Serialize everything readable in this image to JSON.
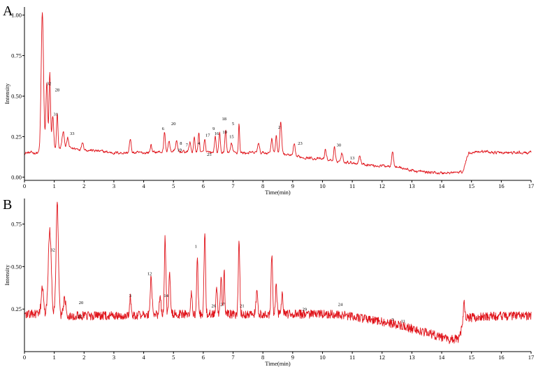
{
  "chart_data": [
    {
      "type": "line",
      "panel": "A",
      "xlabel": "Time(min)",
      "ylabel": "Intensity",
      "xlim": [
        0,
        17
      ],
      "ylim": [
        -0.02,
        1.05
      ],
      "xticks": [
        "0",
        "1",
        "2",
        "3",
        "4",
        "5",
        "6",
        "7",
        "8",
        "9",
        "10",
        "11",
        "12",
        "13",
        "14",
        "15",
        "16",
        "17"
      ],
      "yticks": [
        {
          "value": 0.0,
          "label": "0.00"
        },
        {
          "value": 0.25,
          "label": "0.25"
        },
        {
          "value": 0.5,
          "label": "0.50"
        },
        {
          "value": 0.75,
          "label": "0.75"
        },
        {
          "value": 1.0,
          "label": "1.00"
        }
      ],
      "color": "#e0141b",
      "baseline": [
        [
          0,
          0.15
        ],
        [
          0.55,
          0.15
        ],
        [
          0.58,
          0.16
        ],
        [
          1.5,
          0.18
        ],
        [
          2.0,
          0.17
        ],
        [
          3.0,
          0.15
        ],
        [
          4.0,
          0.15
        ],
        [
          5.0,
          0.16
        ],
        [
          6.0,
          0.15
        ],
        [
          7.5,
          0.15
        ],
        [
          8.5,
          0.15
        ],
        [
          9.0,
          0.13
        ],
        [
          10.0,
          0.11
        ],
        [
          11.0,
          0.09
        ],
        [
          11.8,
          0.07
        ],
        [
          12.2,
          0.07
        ],
        [
          12.6,
          0.06
        ],
        [
          13.0,
          0.04
        ],
        [
          13.5,
          0.03
        ],
        [
          14.0,
          0.025
        ],
        [
          14.7,
          0.03
        ],
        [
          14.9,
          0.15
        ],
        [
          15.2,
          0.16
        ],
        [
          16.0,
          0.15
        ],
        [
          17.0,
          0.15
        ]
      ],
      "noise": 0.007,
      "peaks": [
        [
          0.6,
          0.85,
          0.04
        ],
        [
          0.75,
          0.42,
          0.03
        ],
        [
          0.85,
          0.48,
          0.025
        ],
        [
          0.95,
          0.2,
          0.03
        ],
        [
          1.1,
          0.22,
          0.025
        ],
        [
          1.3,
          0.1,
          0.04
        ],
        [
          1.45,
          0.06,
          0.03
        ],
        [
          1.95,
          0.05,
          0.03
        ],
        [
          3.55,
          0.08,
          0.03
        ],
        [
          4.25,
          0.05,
          0.025
        ],
        [
          4.7,
          0.12,
          0.025
        ],
        [
          4.85,
          0.06,
          0.03
        ],
        [
          5.1,
          0.06,
          0.03
        ],
        [
          5.55,
          0.06,
          0.03
        ],
        [
          5.7,
          0.09,
          0.025
        ],
        [
          5.85,
          0.12,
          0.025
        ],
        [
          6.05,
          0.08,
          0.025
        ],
        [
          6.4,
          0.1,
          0.025
        ],
        [
          6.55,
          0.12,
          0.025
        ],
        [
          6.75,
          0.14,
          0.025
        ],
        [
          6.95,
          0.06,
          0.03
        ],
        [
          7.2,
          0.18,
          0.02
        ],
        [
          7.85,
          0.06,
          0.03
        ],
        [
          8.3,
          0.09,
          0.03
        ],
        [
          8.45,
          0.1,
          0.025
        ],
        [
          8.6,
          0.2,
          0.03
        ],
        [
          9.05,
          0.07,
          0.03
        ],
        [
          10.1,
          0.06,
          0.03
        ],
        [
          10.4,
          0.08,
          0.025
        ],
        [
          10.65,
          0.05,
          0.03
        ],
        [
          11.25,
          0.05,
          0.03
        ],
        [
          12.35,
          0.1,
          0.03
        ]
      ],
      "annotations": [
        {
          "label": "32",
          "x": 0.82,
          "y": 0.57
        },
        {
          "label": "28",
          "x": 1.1,
          "y": 0.53
        },
        {
          "label": "31",
          "x": 1.05,
          "y": 0.38
        },
        {
          "label": "33",
          "x": 1.6,
          "y": 0.26
        },
        {
          "label": "6",
          "x": 4.65,
          "y": 0.29
        },
        {
          "label": "20",
          "x": 5.0,
          "y": 0.32
        },
        {
          "label": "8",
          "x": 5.25,
          "y": 0.2
        },
        {
          "label": "19",
          "x": 5.2,
          "y": 0.16
        },
        {
          "label": "7",
          "x": 5.45,
          "y": 0.19
        },
        {
          "label": "4",
          "x": 5.85,
          "y": 0.2
        },
        {
          "label": "17",
          "x": 6.15,
          "y": 0.25
        },
        {
          "label": "9",
          "x": 6.35,
          "y": 0.29
        },
        {
          "label": "16",
          "x": 6.45,
          "y": 0.26
        },
        {
          "label": "18",
          "x": 6.7,
          "y": 0.35
        },
        {
          "label": "5",
          "x": 7.0,
          "y": 0.32
        },
        {
          "label": "10",
          "x": 6.72,
          "y": 0.27
        },
        {
          "label": "15",
          "x": 6.95,
          "y": 0.24
        },
        {
          "label": "25",
          "x": 6.2,
          "y": 0.13
        },
        {
          "label": "2",
          "x": 8.55,
          "y": 0.3
        },
        {
          "label": "23",
          "x": 9.25,
          "y": 0.2
        },
        {
          "label": "30",
          "x": 10.55,
          "y": 0.19
        },
        {
          "label": "13",
          "x": 11.0,
          "y": 0.11
        }
      ]
    },
    {
      "type": "line",
      "panel": "B",
      "xlabel": "Time(min)",
      "ylabel": "Intensity",
      "xlim": [
        0,
        17
      ],
      "ylim": [
        0.0,
        0.9
      ],
      "xticks": [
        "0",
        "1",
        "2",
        "3",
        "4",
        "5",
        "6",
        "7",
        "8",
        "9",
        "10",
        "11",
        "12",
        "13",
        "14",
        "15",
        "16",
        "17"
      ],
      "yticks": [
        {
          "value": 0.25,
          "label": "0.25"
        },
        {
          "value": 0.5,
          "label": "0.50"
        },
        {
          "value": 0.75,
          "label": "0.75"
        }
      ],
      "color": "#e0141b",
      "baseline": [
        [
          0,
          0.22
        ],
        [
          0.4,
          0.22
        ],
        [
          1.5,
          0.21
        ],
        [
          3.0,
          0.21
        ],
        [
          5.0,
          0.22
        ],
        [
          7.0,
          0.22
        ],
        [
          9.0,
          0.22
        ],
        [
          10.5,
          0.22
        ],
        [
          11.5,
          0.19
        ],
        [
          12.5,
          0.16
        ],
        [
          13.5,
          0.11
        ],
        [
          14.3,
          0.07
        ],
        [
          14.6,
          0.08
        ],
        [
          14.75,
          0.2
        ],
        [
          15.0,
          0.2
        ],
        [
          16.0,
          0.21
        ],
        [
          17.0,
          0.21
        ]
      ],
      "noise": 0.026,
      "peaks": [
        [
          0.6,
          0.15,
          0.04
        ],
        [
          0.85,
          0.5,
          0.05
        ],
        [
          1.1,
          0.65,
          0.04
        ],
        [
          1.35,
          0.1,
          0.04
        ],
        [
          3.55,
          0.11,
          0.025
        ],
        [
          4.25,
          0.22,
          0.03
        ],
        [
          4.55,
          0.12,
          0.025
        ],
        [
          4.72,
          0.45,
          0.025
        ],
        [
          4.87,
          0.25,
          0.025
        ],
        [
          5.6,
          0.12,
          0.025
        ],
        [
          5.8,
          0.32,
          0.025
        ],
        [
          6.05,
          0.48,
          0.025
        ],
        [
          6.45,
          0.15,
          0.025
        ],
        [
          6.6,
          0.22,
          0.025
        ],
        [
          6.7,
          0.28,
          0.02
        ],
        [
          7.2,
          0.42,
          0.025
        ],
        [
          7.8,
          0.12,
          0.03
        ],
        [
          8.3,
          0.36,
          0.025
        ],
        [
          8.45,
          0.18,
          0.025
        ],
        [
          8.65,
          0.12,
          0.025
        ],
        [
          14.75,
          0.08,
          0.03
        ]
      ],
      "annotations": [
        {
          "label": "32",
          "x": 0.95,
          "y": 0.59
        },
        {
          "label": "12",
          "x": 4.2,
          "y": 0.45
        },
        {
          "label": "3",
          "x": 3.55,
          "y": 0.32
        },
        {
          "label": "14",
          "x": 4.75,
          "y": 0.32
        },
        {
          "label": "1",
          "x": 5.75,
          "y": 0.61
        },
        {
          "label": "20",
          "x": 1.9,
          "y": 0.28
        },
        {
          "label": "22",
          "x": 1.85,
          "y": 0.2
        },
        {
          "label": "26",
          "x": 6.35,
          "y": 0.26
        },
        {
          "label": "27",
          "x": 6.65,
          "y": 0.27
        },
        {
          "label": "21",
          "x": 7.3,
          "y": 0.26
        },
        {
          "label": "29",
          "x": 9.4,
          "y": 0.24
        },
        {
          "label": "24",
          "x": 10.6,
          "y": 0.27
        },
        {
          "label": "3",
          "x": 12.35,
          "y": 0.18
        },
        {
          "label": "11",
          "x": 12.7,
          "y": 0.17
        }
      ]
    }
  ]
}
